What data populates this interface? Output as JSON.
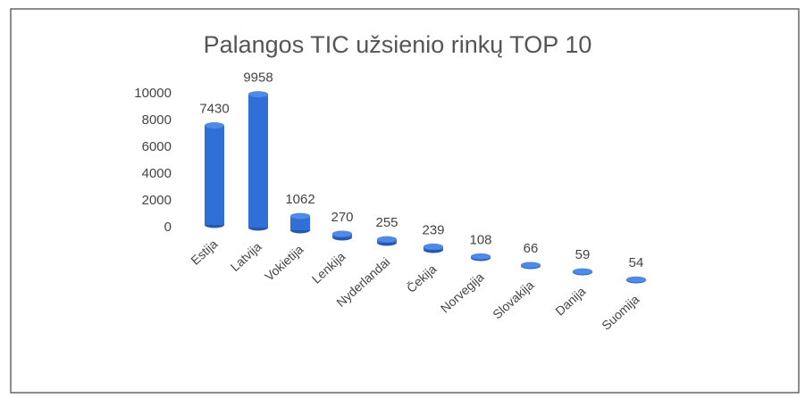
{
  "chart_data": {
    "type": "bar",
    "title": "Palangos TIC užsienio rinkų TOP 10",
    "categories": [
      "Estija",
      "Latvija",
      "Vokietija",
      "Lenkija",
      "Nyderlandai",
      "Čekija",
      "Norvegija",
      "Slovakija",
      "Danija",
      "Suomija"
    ],
    "values": [
      7430,
      9958,
      1062,
      270,
      255,
      239,
      108,
      66,
      59,
      54
    ],
    "color": "#2f6fd6",
    "ylim": [
      0,
      10000
    ],
    "yticks": [
      0,
      2000,
      4000,
      6000,
      8000,
      10000
    ],
    "grid": false
  }
}
